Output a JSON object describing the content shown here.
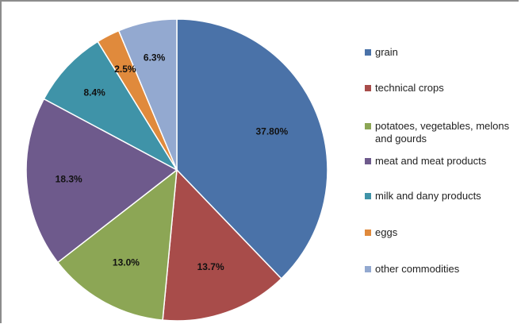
{
  "chart_data": {
    "type": "pie",
    "title": "",
    "start_angle_deg": 0,
    "direction": "clockwise",
    "legend_position": "right",
    "slices": [
      {
        "label": "grain",
        "value": 37.8,
        "display": "37.80%",
        "color": "#4a72a8"
      },
      {
        "label": "technical crops",
        "value": 13.7,
        "display": "13.7%",
        "color": "#a84c4a"
      },
      {
        "label": "potatoes, vegetables, melons and gourds",
        "value": 13.0,
        "display": "13.0%",
        "color": "#8ca655"
      },
      {
        "label": "meat and meat products",
        "value": 18.3,
        "display": "18.3%",
        "color": "#6e5a8c"
      },
      {
        "label": "milk and dany products",
        "value": 8.4,
        "display": "8.4%",
        "color": "#3f93a8"
      },
      {
        "label": "eggs",
        "value": 2.5,
        "display": "2.5%",
        "color": "#e08a3c"
      },
      {
        "label": "other commodities",
        "value": 6.3,
        "display": "6.3%",
        "color": "#93a9d0"
      }
    ]
  }
}
